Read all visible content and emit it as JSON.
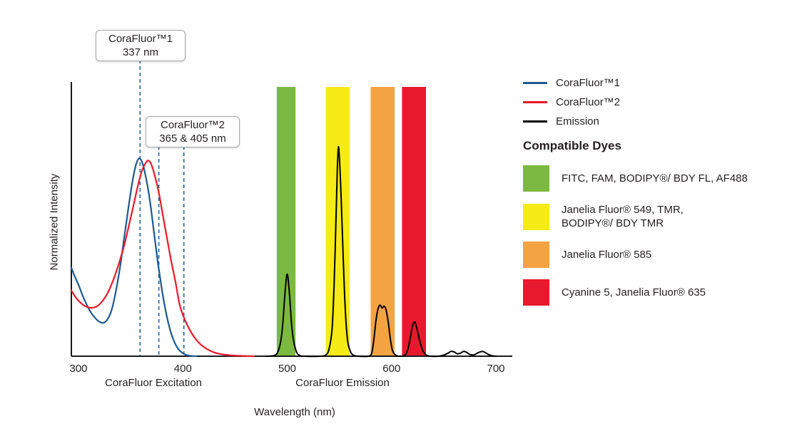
{
  "figure": {
    "legend_series": [
      {
        "label": "CoraFluor™1",
        "color": "#20598F"
      },
      {
        "label": "CoraFluor™2",
        "color": "#E8192C"
      },
      {
        "label": "Emission",
        "color": "#000000"
      }
    ],
    "dyes_heading": "Compatible Dyes",
    "dyes": [
      {
        "color": "#7CB940",
        "label": "FITC, FAM, BODIPY®/ BDY FL, AF488"
      },
      {
        "color": "#F6EB16",
        "label": "Janelia Fluor® 549, TMR,\nBODIPY®/ BDY TMR"
      },
      {
        "color": "#F4A342",
        "label": "Janelia Fluor® 585"
      },
      {
        "color": "#E8192C",
        "label": "Cyanine 5, Janelia Fluor® 635"
      }
    ]
  },
  "chart_data": {
    "type": "line",
    "xlabel": "Wavelength (nm)",
    "ylabel": "Normalized Intensity",
    "xlim": [
      293,
      716
    ],
    "ylim": [
      0,
      1
    ],
    "x_ticks": [
      300,
      400,
      500,
      600,
      700
    ],
    "x_group_labels": [
      {
        "text": "CoraFluor Excitation"
      },
      {
        "text": "CoraFluor Emission"
      }
    ],
    "annotations": [
      {
        "line1": "CoraFluor™1",
        "line2": "337 nm"
      },
      {
        "line1": "CoraFluor™2",
        "line2": "365 & 405 nm"
      }
    ],
    "guide_lines": {
      "color": "#2A6099",
      "nm": [
        359,
        377,
        401
      ]
    },
    "bands": [
      {
        "nm_start": 490,
        "nm_end": 508,
        "color": "#7CB940"
      },
      {
        "nm_start": 537,
        "nm_end": 560,
        "color": "#F6EB16"
      },
      {
        "nm_start": 580,
        "nm_end": 603,
        "color": "#F4A342"
      },
      {
        "nm_start": 610,
        "nm_end": 633,
        "color": "#E8192C"
      }
    ],
    "series": [
      {
        "name": "CoraFluor™1",
        "color": "#20598F",
        "width": 2.2,
        "points": [
          [
            293,
            0.33
          ],
          [
            296,
            0.3
          ],
          [
            300,
            0.265
          ],
          [
            304,
            0.225
          ],
          [
            308,
            0.19
          ],
          [
            312,
            0.162
          ],
          [
            316,
            0.142
          ],
          [
            320,
            0.128
          ],
          [
            324,
            0.124
          ],
          [
            328,
            0.138
          ],
          [
            332,
            0.175
          ],
          [
            336,
            0.245
          ],
          [
            340,
            0.335
          ],
          [
            344,
            0.445
          ],
          [
            348,
            0.555
          ],
          [
            352,
            0.655
          ],
          [
            355,
            0.71
          ],
          [
            358,
            0.735
          ],
          [
            361,
            0.72
          ],
          [
            364,
            0.675
          ],
          [
            368,
            0.59
          ],
          [
            372,
            0.47
          ],
          [
            376,
            0.35
          ],
          [
            380,
            0.245
          ],
          [
            384,
            0.16
          ],
          [
            388,
            0.095
          ],
          [
            392,
            0.052
          ],
          [
            396,
            0.025
          ],
          [
            400,
            0.011
          ],
          [
            404,
            0.004
          ],
          [
            408,
            0.001
          ],
          [
            413,
            0
          ]
        ]
      },
      {
        "name": "CoraFluor™2",
        "color": "#E8192C",
        "width": 2.2,
        "points": [
          [
            293,
            0.245
          ],
          [
            298,
            0.215
          ],
          [
            303,
            0.195
          ],
          [
            308,
            0.183
          ],
          [
            313,
            0.18
          ],
          [
            318,
            0.186
          ],
          [
            323,
            0.205
          ],
          [
            328,
            0.235
          ],
          [
            333,
            0.28
          ],
          [
            338,
            0.335
          ],
          [
            343,
            0.4
          ],
          [
            348,
            0.48
          ],
          [
            353,
            0.565
          ],
          [
            357,
            0.635
          ],
          [
            361,
            0.69
          ],
          [
            364,
            0.715
          ],
          [
            367,
            0.727
          ],
          [
            370,
            0.71
          ],
          [
            373,
            0.672
          ],
          [
            377,
            0.607
          ],
          [
            381,
            0.52
          ],
          [
            385,
            0.435
          ],
          [
            389,
            0.35
          ],
          [
            393,
            0.275
          ],
          [
            397,
            0.19
          ],
          [
            402,
            0.135
          ],
          [
            407,
            0.095
          ],
          [
            412,
            0.065
          ],
          [
            417,
            0.044
          ],
          [
            423,
            0.027
          ],
          [
            430,
            0.014
          ],
          [
            438,
            0.007
          ],
          [
            447,
            0.003
          ],
          [
            457,
            0.001
          ],
          [
            468,
            0
          ]
        ]
      },
      {
        "name": "Emission",
        "color": "#000000",
        "width": 2,
        "points": [
          [
            480,
            0
          ],
          [
            487,
            0.002
          ],
          [
            491,
            0.015
          ],
          [
            494,
            0.06
          ],
          [
            496,
            0.13
          ],
          [
            498,
            0.24
          ],
          [
            500,
            0.305
          ],
          [
            502,
            0.24
          ],
          [
            504,
            0.13
          ],
          [
            506,
            0.06
          ],
          [
            509,
            0.015
          ],
          [
            512,
            0.003
          ],
          [
            516,
            0
          ],
          [
            532,
            0
          ],
          [
            537,
            0.005
          ],
          [
            540,
            0.025
          ],
          [
            543,
            0.1
          ],
          [
            545,
            0.27
          ],
          [
            547,
            0.54
          ],
          [
            548,
            0.69
          ],
          [
            549,
            0.775
          ],
          [
            550,
            0.74
          ],
          [
            552,
            0.56
          ],
          [
            554,
            0.33
          ],
          [
            556,
            0.15
          ],
          [
            558,
            0.055
          ],
          [
            561,
            0.014
          ],
          [
            564,
            0.003
          ],
          [
            568,
            0
          ],
          [
            578,
            0
          ],
          [
            581,
            0.012
          ],
          [
            583,
            0.06
          ],
          [
            585,
            0.13
          ],
          [
            587,
            0.175
          ],
          [
            589,
            0.19
          ],
          [
            591,
            0.179
          ],
          [
            593,
            0.186
          ],
          [
            595,
            0.168
          ],
          [
            597,
            0.122
          ],
          [
            599,
            0.06
          ],
          [
            601,
            0.02
          ],
          [
            604,
            0.004
          ],
          [
            607,
            0
          ],
          [
            612,
            0.002
          ],
          [
            615,
            0.018
          ],
          [
            618,
            0.068
          ],
          [
            620,
            0.112
          ],
          [
            622,
            0.127
          ],
          [
            624,
            0.108
          ],
          [
            627,
            0.058
          ],
          [
            630,
            0.02
          ],
          [
            633,
            0.005
          ],
          [
            637,
            0
          ],
          [
            645,
            0
          ],
          [
            650,
            0.004
          ],
          [
            654,
            0.011
          ],
          [
            657,
            0.018
          ],
          [
            660,
            0.016
          ],
          [
            663,
            0.009
          ],
          [
            666,
            0.011
          ],
          [
            669,
            0.018
          ],
          [
            672,
            0.014
          ],
          [
            675,
            0.007
          ],
          [
            679,
            0.005
          ],
          [
            683,
            0.013
          ],
          [
            687,
            0.018
          ],
          [
            690,
            0.013
          ],
          [
            693,
            0.006
          ],
          [
            696,
            0.002
          ],
          [
            700,
            0
          ]
        ]
      }
    ]
  }
}
